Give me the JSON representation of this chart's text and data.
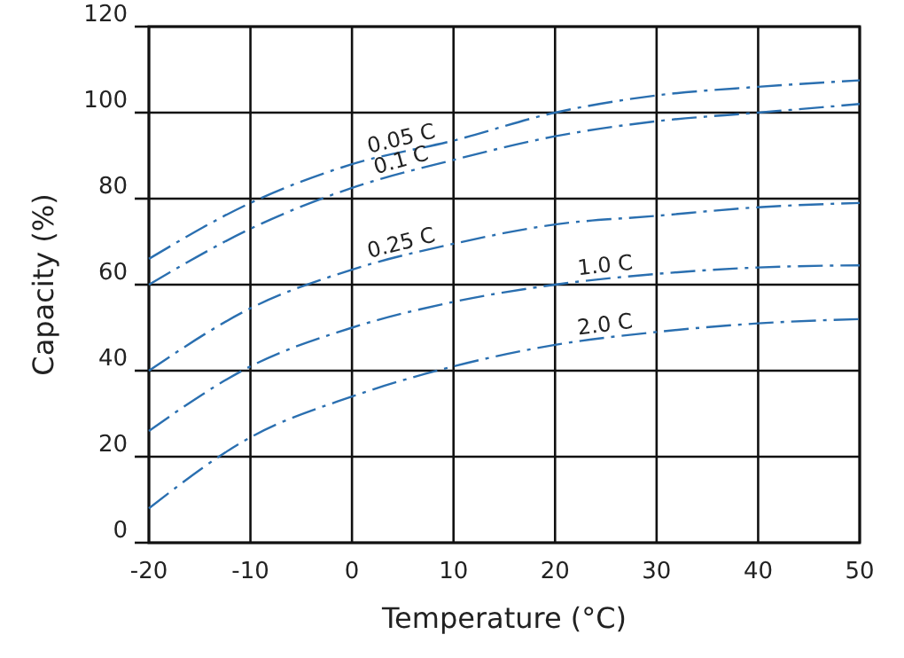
{
  "chart_data": {
    "type": "line",
    "xlabel": "Temperature (°C)",
    "ylabel": "Capacity (%)",
    "x": [
      -20,
      -10,
      0,
      10,
      20,
      30,
      40,
      50
    ],
    "series": [
      {
        "name": "0.05 C",
        "color": "#2a6fb0",
        "values": [
          66,
          79,
          88,
          93.5,
          100,
          104,
          106,
          107.5
        ]
      },
      {
        "name": "0.1 C",
        "color": "#2a6fb0",
        "values": [
          60,
          73,
          82.5,
          89,
          94.5,
          98,
          100,
          102
        ]
      },
      {
        "name": "0.25 C",
        "color": "#2a6fb0",
        "values": [
          40,
          54.5,
          63.5,
          69.5,
          74,
          76,
          78,
          79
        ]
      },
      {
        "name": "1.0 C",
        "color": "#2a6fb0",
        "values": [
          26,
          41,
          50,
          56,
          60,
          62.5,
          64,
          64.5
        ]
      },
      {
        "name": "2.0 C",
        "color": "#2a6fb0",
        "values": [
          8,
          24.5,
          34,
          41,
          46,
          49,
          51,
          52
        ]
      }
    ],
    "xlim": [
      -20,
      50
    ],
    "ylim": [
      0,
      120
    ],
    "xticks": [
      -20,
      -10,
      0,
      10,
      20,
      30,
      40,
      50
    ],
    "yticks": [
      0,
      20,
      40,
      60,
      80,
      100,
      120
    ],
    "grid": true,
    "line_style": "dashed",
    "marker": "none"
  }
}
